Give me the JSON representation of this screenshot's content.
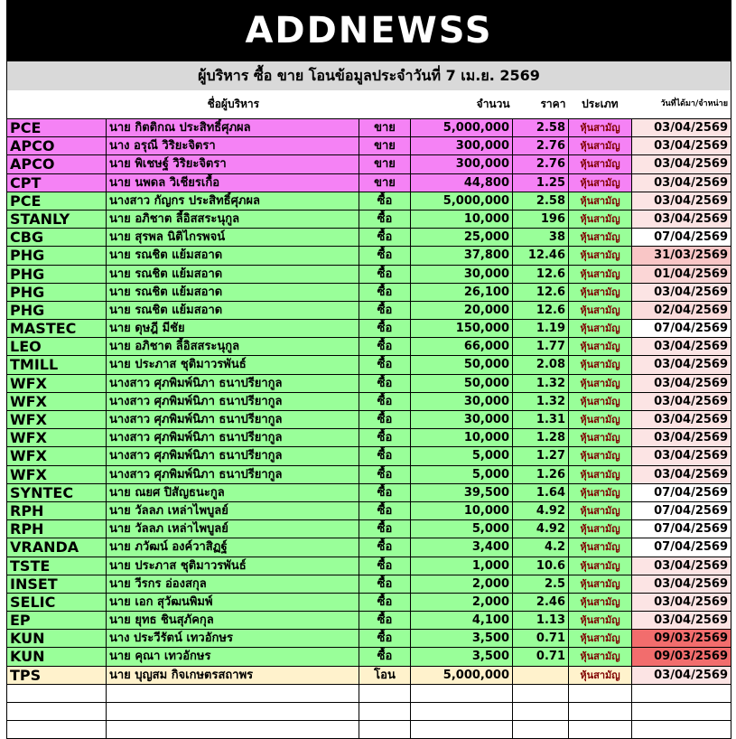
{
  "header": {
    "logo": "ADDNEWSS",
    "title": "ผู้บริหาร ซื้อ ขาย โอนข้อมูลประจำวันที่ 7 เม.ย. 2569"
  },
  "table": {
    "columns": [
      null,
      "ชื่อผู้บริหาร",
      null,
      "จำนวน",
      "ราคา",
      "ประเภท",
      "วันที่ได้มา/จำหน่าย"
    ],
    "rows": [
      [
        "PCE",
        "นาย กิตติกณ ประสิทธิ์ศุภผล",
        "ขาย",
        "5,000,000",
        "2.58",
        "หุ้นสามัญ",
        "03/04/2569"
      ],
      [
        "APCO",
        "นาง อรุณี วิริยะจิตรา",
        "ขาย",
        "300,000",
        "2.76",
        "หุ้นสามัญ",
        "03/04/2569"
      ],
      [
        "APCO",
        "นาย พิเชษฐ์ วิริยะจิตรา",
        "ขาย",
        "300,000",
        "2.76",
        "หุ้นสามัญ",
        "03/04/2569"
      ],
      [
        "CPT",
        "นาย นพดล วิเชียรเกื้อ",
        "ขาย",
        "44,800",
        "1.25",
        "หุ้นสามัญ",
        "03/04/2569"
      ],
      [
        "PCE",
        "นางสาว กัญกร ประสิทธิ์ศุภผล",
        "ซื้อ",
        "5,000,000",
        "2.58",
        "หุ้นสามัญ",
        "03/04/2569"
      ],
      [
        "STANLY",
        "นาย อภิชาต ลี้อิสสระนุกูล",
        "ซื้อ",
        "10,000",
        "196",
        "หุ้นสามัญ",
        "03/04/2569"
      ],
      [
        "CBG",
        "นาย สุรพล นิติไกรพจน์",
        "ซื้อ",
        "25,000",
        "38",
        "หุ้นสามัญ",
        "07/04/2569"
      ],
      [
        "PHG",
        "นาย รณชิต แย้มสอาด",
        "ซื้อ",
        "37,800",
        "12.46",
        "หุ้นสามัญ",
        "31/03/2569"
      ],
      [
        "PHG",
        "นาย รณชิต แย้มสอาด",
        "ซื้อ",
        "30,000",
        "12.6",
        "หุ้นสามัญ",
        "01/04/2569"
      ],
      [
        "PHG",
        "นาย รณชิต แย้มสอาด",
        "ซื้อ",
        "26,100",
        "12.6",
        "หุ้นสามัญ",
        "03/04/2569"
      ],
      [
        "PHG",
        "นาย รณชิต แย้มสอาด",
        "ซื้อ",
        "20,000",
        "12.6",
        "หุ้นสามัญ",
        "02/04/2569"
      ],
      [
        "MASTEC",
        "นาย ดุษฎี มีชัย",
        "ซื้อ",
        "150,000",
        "1.19",
        "หุ้นสามัญ",
        "07/04/2569"
      ],
      [
        "LEO",
        "นาย อภิชาต ลี้อิสสระนุกูล",
        "ซื้อ",
        "66,000",
        "1.77",
        "หุ้นสามัญ",
        "03/04/2569"
      ],
      [
        "TMILL",
        "นาย ประภาส ชุติมาวรพันธ์",
        "ซื้อ",
        "50,000",
        "2.08",
        "หุ้นสามัญ",
        "03/04/2569"
      ],
      [
        "WFX",
        "นางสาว ศุภพิมพ์นิภา ธนาปรียากูล",
        "ซื้อ",
        "50,000",
        "1.32",
        "หุ้นสามัญ",
        "03/04/2569"
      ],
      [
        "WFX",
        "นางสาว ศุภพิมพ์นิภา ธนาปรียากูล",
        "ซื้อ",
        "30,000",
        "1.32",
        "หุ้นสามัญ",
        "03/04/2569"
      ],
      [
        "WFX",
        "นางสาว ศุภพิมพ์นิภา ธนาปรียากูล",
        "ซื้อ",
        "30,000",
        "1.31",
        "หุ้นสามัญ",
        "03/04/2569"
      ],
      [
        "WFX",
        "นางสาว ศุภพิมพ์นิภา ธนาปรียากูล",
        "ซื้อ",
        "10,000",
        "1.28",
        "หุ้นสามัญ",
        "03/04/2569"
      ],
      [
        "WFX",
        "นางสาว ศุภพิมพ์นิภา ธนาปรียากูล",
        "ซื้อ",
        "5,000",
        "1.27",
        "หุ้นสามัญ",
        "03/04/2569"
      ],
      [
        "WFX",
        "นางสาว ศุภพิมพ์นิภา ธนาปรียากูล",
        "ซื้อ",
        "5,000",
        "1.26",
        "หุ้นสามัญ",
        "03/04/2569"
      ],
      [
        "SYNTEC",
        "นาย ณยศ ปิสัญธนะกูล",
        "ซื้อ",
        "39,500",
        "1.64",
        "หุ้นสามัญ",
        "07/04/2569"
      ],
      [
        "RPH",
        "นาย วัลลภ เหล่าไพบูลย์",
        "ซื้อ",
        "10,000",
        "4.92",
        "หุ้นสามัญ",
        "07/04/2569"
      ],
      [
        "RPH",
        "นาย วัลลภ เหล่าไพบูลย์",
        "ซื้อ",
        "5,000",
        "4.92",
        "หุ้นสามัญ",
        "07/04/2569"
      ],
      [
        "VRANDA",
        "นาย ภวัฒน์ องค์วาสิฏฐ์",
        "ซื้อ",
        "3,400",
        "4.2",
        "หุ้นสามัญ",
        "07/04/2569"
      ],
      [
        "TSTE",
        "นาย ประภาส ชุติมาวรพันธ์",
        "ซื้อ",
        "1,000",
        "10.6",
        "หุ้นสามัญ",
        "03/04/2569"
      ],
      [
        "INSET",
        "นาย วีรกร อ่องสกุล",
        "ซื้อ",
        "2,000",
        "2.5",
        "หุ้นสามัญ",
        "03/04/2569"
      ],
      [
        "SELIC",
        "นาย เอก สุวัฒนพิมพ์",
        "ซื้อ",
        "2,000",
        "2.46",
        "หุ้นสามัญ",
        "03/04/2569"
      ],
      [
        "EP",
        "นาย ยุทธ ชินสุภัคกุล",
        "ซื้อ",
        "4,100",
        "1.13",
        "หุ้นสามัญ",
        "03/04/2569"
      ],
      [
        "KUN",
        "นาง ประวีรัตน์ เทวอักษร",
        "ซื้อ",
        "3,500",
        "0.71",
        "หุ้นสามัญ",
        "09/03/2569"
      ],
      [
        "KUN",
        "นาย คุณา เทวอักษร",
        "ซื้อ",
        "3,500",
        "0.71",
        "หุ้นสามัญ",
        "09/03/2569"
      ],
      [
        "TPS",
        "นาย บุญสม กิจเกษตรสถาพร",
        "โอน",
        "5,000,000",
        null,
        "หุ้นสามัญ",
        "03/04/2569"
      ]
    ],
    "row_colors": [
      "#f582f5",
      "#f582f5",
      "#f582f5",
      "#f582f5",
      "#99ff99",
      "#99ff99",
      "#99ff99",
      "#99ff99",
      "#99ff99",
      "#99ff99",
      "#99ff99",
      "#99ff99",
      "#99ff99",
      "#99ff99",
      "#99ff99",
      "#99ff99",
      "#99ff99",
      "#99ff99",
      "#99ff99",
      "#99ff99",
      "#99ff99",
      "#99ff99",
      "#99ff99",
      "#99ff99",
      "#99ff99",
      "#99ff99",
      "#99ff99",
      "#99ff99",
      "#99ff99",
      "#99ff99",
      "#fff2cc"
    ],
    "date_colors": [
      "#fce4e4",
      "#fce4e4",
      "#fce4e4",
      "#fce4e4",
      "#fce4e4",
      "#fce4e4",
      "#ffffff",
      "#f9c6c6",
      "#fbd6d6",
      "#fce4e4",
      "#fbdcdc",
      "#ffffff",
      "#fce4e4",
      "#fce4e4",
      "#fce4e4",
      "#fce4e4",
      "#fce4e4",
      "#fce4e4",
      "#fce4e4",
      "#fce4e4",
      "#ffffff",
      "#ffffff",
      "#ffffff",
      "#ffffff",
      "#fce4e4",
      "#fce4e4",
      "#fce4e4",
      "#fce4e4",
      "#f26d6d",
      "#f26d6d",
      "#fce4e4"
    ]
  }
}
